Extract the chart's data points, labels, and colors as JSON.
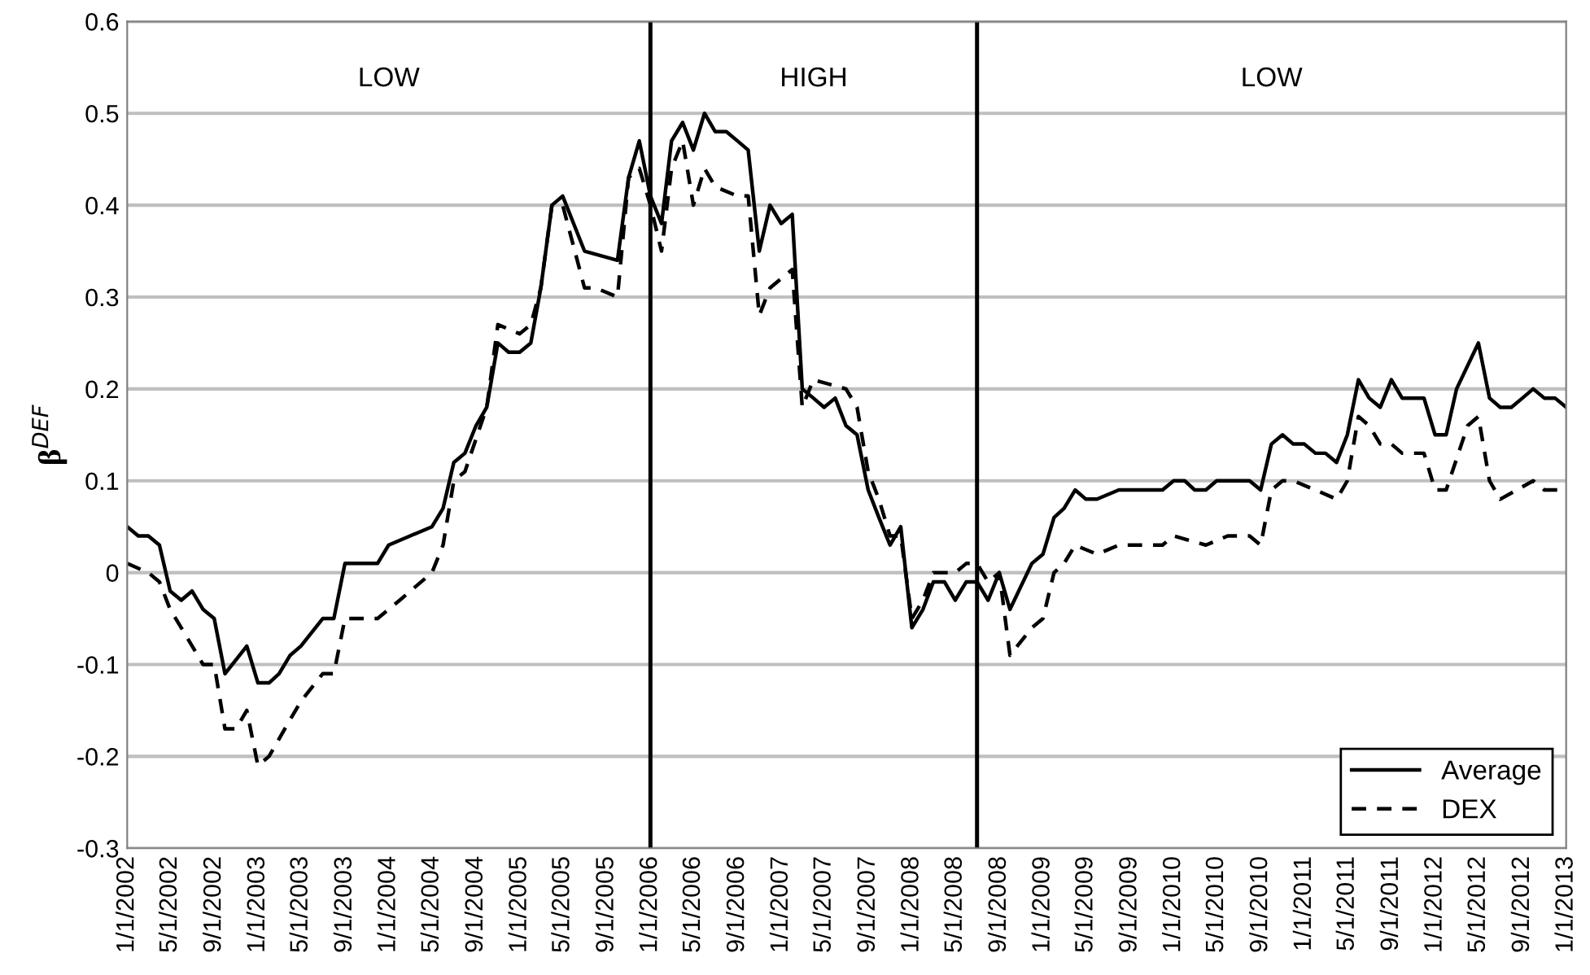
{
  "chart_data": {
    "type": "line",
    "ylabel": "β$^{DEF}$",
    "xlim": [
      "2002-01",
      "2013-01"
    ],
    "ylim": [
      -0.3,
      0.6
    ],
    "yticks": [
      -0.3,
      -0.2,
      -0.1,
      0,
      0.1,
      0.2,
      0.3,
      0.4,
      0.5,
      0.6
    ],
    "xticks": [
      {
        "value": "2002-01",
        "label": "1/1/2002"
      },
      {
        "value": "2002-05",
        "label": "5/1/2002"
      },
      {
        "value": "2002-09",
        "label": "9/1/2002"
      },
      {
        "value": "2003-01",
        "label": "1/1/2003"
      },
      {
        "value": "2003-05",
        "label": "5/1/2003"
      },
      {
        "value": "2003-09",
        "label": "9/1/2003"
      },
      {
        "value": "2004-01",
        "label": "1/1/2004"
      },
      {
        "value": "2004-05",
        "label": "5/1/2004"
      },
      {
        "value": "2004-09",
        "label": "9/1/2004"
      },
      {
        "value": "2005-01",
        "label": "1/1/2005"
      },
      {
        "value": "2005-05",
        "label": "5/1/2005"
      },
      {
        "value": "2005-09",
        "label": "9/1/2005"
      },
      {
        "value": "2006-01",
        "label": "1/1/2006"
      },
      {
        "value": "2006-05",
        "label": "5/1/2006"
      },
      {
        "value": "2006-09",
        "label": "9/1/2006"
      },
      {
        "value": "2007-01",
        "label": "1/1/2007"
      },
      {
        "value": "2007-05",
        "label": "5/1/2007"
      },
      {
        "value": "2007-09",
        "label": "9/1/2007"
      },
      {
        "value": "2008-01",
        "label": "1/1/2008"
      },
      {
        "value": "2008-05",
        "label": "5/1/2008"
      },
      {
        "value": "2008-09",
        "label": "9/1/2008"
      },
      {
        "value": "2009-01",
        "label": "1/1/2009"
      },
      {
        "value": "2009-05",
        "label": "5/1/2009"
      },
      {
        "value": "2009-09",
        "label": "9/1/2009"
      },
      {
        "value": "2010-01",
        "label": "1/1/2010"
      },
      {
        "value": "2010-05",
        "label": "5/1/2010"
      },
      {
        "value": "2010-09",
        "label": "9/1/2010"
      },
      {
        "value": "2011-01",
        "label": "1/1/2011"
      },
      {
        "value": "2011-05",
        "label": "5/1/2011"
      },
      {
        "value": "2011-09",
        "label": "9/1/2011"
      },
      {
        "value": "2012-01",
        "label": "1/1/2012"
      },
      {
        "value": "2012-05",
        "label": "5/1/2012"
      },
      {
        "value": "2012-09",
        "label": "9/1/2012"
      },
      {
        "value": "2013-01",
        "label": "1/1/2013"
      }
    ],
    "grid": "y",
    "legend": "bottom right",
    "marker": "none",
    "ref_lines": [
      {
        "axis": "x",
        "value": "2006-01",
        "color": "#000000",
        "line_style": "solid"
      },
      {
        "axis": "x",
        "value": "2008-07",
        "color": "#000000",
        "line_style": "solid"
      }
    ],
    "annotations": [
      "LOW",
      "HIGH",
      "LOW"
    ],
    "series": [
      {
        "name": "Average",
        "color": "#000000",
        "line_style": "solid",
        "x": [
          "2002-01",
          "2002-02",
          "2002-03",
          "2002-04",
          "2002-05",
          "2002-06",
          "2002-07",
          "2002-08",
          "2002-09",
          "2002-10",
          "2002-12",
          "2003-01",
          "2003-02",
          "2003-03",
          "2003-04",
          "2003-05",
          "2003-07",
          "2003-08",
          "2003-09",
          "2003-11",
          "2003-12",
          "2004-01",
          "2004-03",
          "2004-05",
          "2004-06",
          "2004-07",
          "2004-08",
          "2004-09",
          "2004-10",
          "2004-11",
          "2004-12",
          "2005-01",
          "2005-02",
          "2005-03",
          "2005-04",
          "2005-05",
          "2005-07",
          "2005-10",
          "2005-11",
          "2005-12",
          "2006-01",
          "2006-02",
          "2006-03",
          "2006-04",
          "2006-05",
          "2006-06",
          "2006-07",
          "2006-08",
          "2006-09",
          "2006-10",
          "2006-11",
          "2006-12",
          "2007-01",
          "2007-02",
          "2007-03",
          "2007-04",
          "2007-05",
          "2007-06",
          "2007-07",
          "2007-08",
          "2007-09",
          "2007-10",
          "2007-11",
          "2007-12",
          "2008-01",
          "2008-02",
          "2008-03",
          "2008-04",
          "2008-05",
          "2008-06",
          "2008-07",
          "2008-08",
          "2008-09",
          "2008-10",
          "2008-12",
          "2009-01",
          "2009-02",
          "2009-03",
          "2009-04",
          "2009-05",
          "2009-06",
          "2009-08",
          "2009-09",
          "2009-10",
          "2009-12",
          "2010-01",
          "2010-02",
          "2010-03",
          "2010-04",
          "2010-05",
          "2010-06",
          "2010-08",
          "2010-09",
          "2010-10",
          "2010-11",
          "2010-12",
          "2011-01",
          "2011-02",
          "2011-03",
          "2011-04",
          "2011-05",
          "2011-06",
          "2011-07",
          "2011-08",
          "2011-09",
          "2011-10",
          "2011-11",
          "2011-12",
          "2012-01",
          "2012-02",
          "2012-03",
          "2012-05",
          "2012-06",
          "2012-07",
          "2012-08",
          "2012-09",
          "2012-10",
          "2012-11",
          "2012-12",
          "2013-01"
        ],
        "values": [
          0.05,
          0.04,
          0.04,
          0.03,
          -0.02,
          -0.03,
          -0.02,
          -0.04,
          -0.05,
          -0.11,
          -0.08,
          -0.12,
          -0.12,
          -0.11,
          -0.09,
          -0.08,
          -0.05,
          -0.05,
          0.01,
          0.01,
          0.01,
          0.03,
          0.04,
          0.05,
          0.07,
          0.12,
          0.13,
          0.16,
          0.18,
          0.25,
          0.24,
          0.24,
          0.25,
          0.31,
          0.4,
          0.41,
          0.35,
          0.34,
          0.43,
          0.47,
          0.41,
          0.38,
          0.47,
          0.49,
          0.46,
          0.5,
          0.48,
          0.48,
          0.47,
          0.46,
          0.35,
          0.4,
          0.38,
          0.39,
          0.2,
          0.19,
          0.18,
          0.19,
          0.16,
          0.15,
          0.09,
          0.06,
          0.03,
          0.05,
          -0.06,
          -0.04,
          -0.01,
          -0.01,
          -0.03,
          -0.01,
          -0.01,
          -0.03,
          0.0,
          -0.04,
          0.01,
          0.02,
          0.06,
          0.07,
          0.09,
          0.08,
          0.08,
          0.09,
          0.09,
          0.09,
          0.09,
          0.1,
          0.1,
          0.09,
          0.09,
          0.1,
          0.1,
          0.1,
          0.09,
          0.14,
          0.15,
          0.14,
          0.14,
          0.13,
          0.13,
          0.12,
          0.15,
          0.21,
          0.19,
          0.18,
          0.21,
          0.19,
          0.19,
          0.19,
          0.15,
          0.15,
          0.2,
          0.25,
          0.19,
          0.18,
          0.18,
          0.19,
          0.2,
          0.19,
          0.19,
          0.18
        ]
      },
      {
        "name": "DEX",
        "color": "#000000",
        "line_style": "dashed",
        "x": [
          "2002-01",
          "2002-03",
          "2002-04",
          "2002-05",
          "2002-06",
          "2002-08",
          "2002-09",
          "2002-10",
          "2002-11",
          "2002-12",
          "2003-01",
          "2003-02",
          "2003-04",
          "2003-05",
          "2003-07",
          "2003-08",
          "2003-09",
          "2003-12",
          "2004-02",
          "2004-04",
          "2004-05",
          "2004-06",
          "2004-07",
          "2004-08",
          "2004-10",
          "2004-11",
          "2005-01",
          "2005-02",
          "2005-03",
          "2005-04",
          "2005-05",
          "2005-07",
          "2005-08",
          "2005-10",
          "2005-11",
          "2005-12",
          "2006-01",
          "2006-02",
          "2006-03",
          "2006-04",
          "2006-05",
          "2006-06",
          "2006-07",
          "2006-09",
          "2006-10",
          "2006-11",
          "2006-12",
          "2007-02",
          "2007-03",
          "2007-04",
          "2007-07",
          "2007-08",
          "2007-09",
          "2007-10",
          "2007-11",
          "2007-12",
          "2008-01",
          "2008-02",
          "2008-03",
          "2008-05",
          "2008-06",
          "2008-07",
          "2008-08",
          "2008-09",
          "2008-10",
          "2008-12",
          "2009-01",
          "2009-02",
          "2009-03",
          "2009-04",
          "2009-06",
          "2009-08",
          "2009-12",
          "2010-01",
          "2010-04",
          "2010-06",
          "2010-08",
          "2010-09",
          "2010-10",
          "2010-11",
          "2010-12",
          "2011-02",
          "2011-04",
          "2011-05",
          "2011-06",
          "2011-07",
          "2011-08",
          "2011-09",
          "2011-10",
          "2011-12",
          "2012-01",
          "2012-02",
          "2012-04",
          "2012-05",
          "2012-06",
          "2012-07",
          "2012-10",
          "2012-11",
          "2013-01"
        ],
        "values": [
          0.01,
          0.0,
          -0.01,
          -0.04,
          -0.06,
          -0.1,
          -0.1,
          -0.17,
          -0.17,
          -0.15,
          -0.21,
          -0.2,
          -0.16,
          -0.14,
          -0.11,
          -0.11,
          -0.05,
          -0.05,
          -0.03,
          -0.01,
          0.0,
          0.03,
          0.1,
          0.11,
          0.18,
          0.27,
          0.26,
          0.27,
          0.31,
          0.4,
          0.4,
          0.31,
          0.31,
          0.3,
          0.43,
          0.44,
          0.4,
          0.35,
          0.44,
          0.47,
          0.4,
          0.44,
          0.42,
          0.41,
          0.41,
          0.28,
          0.31,
          0.33,
          0.18,
          0.21,
          0.2,
          0.18,
          0.11,
          0.08,
          0.04,
          0.04,
          -0.05,
          -0.03,
          0.0,
          0.0,
          0.01,
          0.01,
          -0.01,
          0.0,
          -0.09,
          -0.06,
          -0.05,
          0.0,
          0.01,
          0.03,
          0.02,
          0.03,
          0.03,
          0.04,
          0.03,
          0.04,
          0.04,
          0.03,
          0.09,
          0.1,
          0.1,
          0.09,
          0.08,
          0.1,
          0.17,
          0.16,
          0.14,
          0.14,
          0.13,
          0.13,
          0.09,
          0.09,
          0.16,
          0.17,
          0.1,
          0.08,
          0.1,
          0.09,
          0.09
        ]
      }
    ]
  }
}
